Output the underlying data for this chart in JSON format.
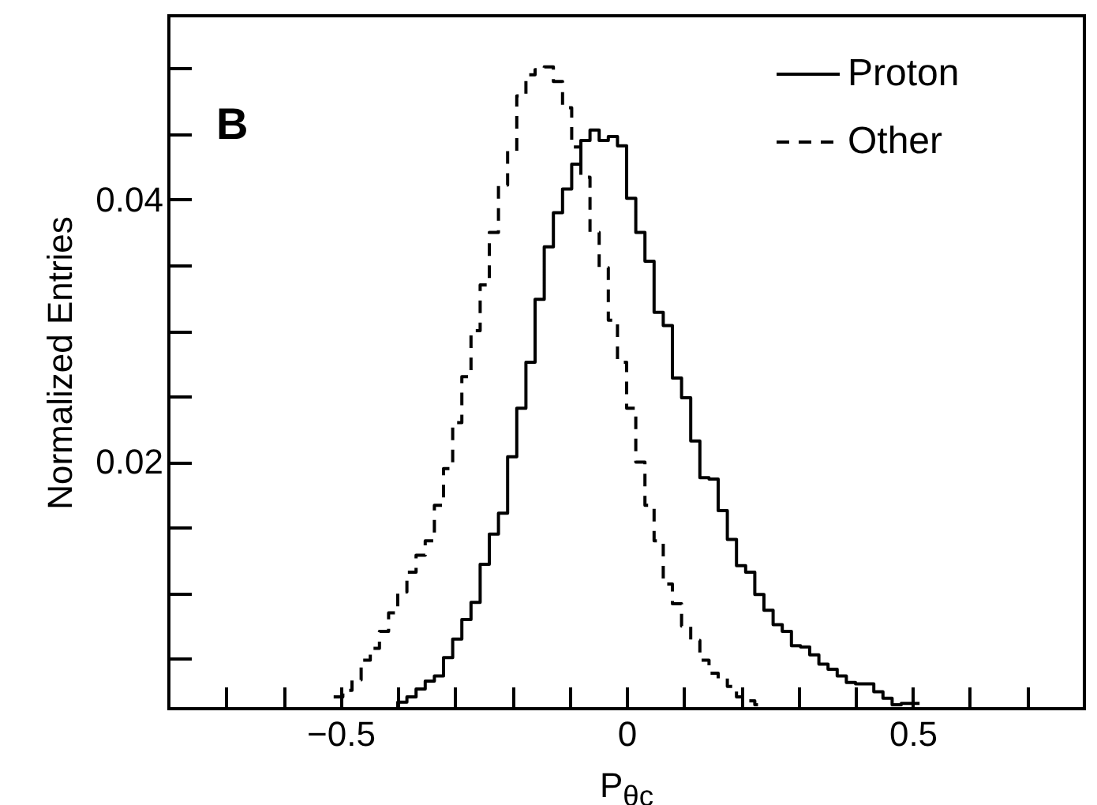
{
  "chart_data": {
    "type": "histogram",
    "xlabel": "P$_{θc}$",
    "ylabel": "Normalized Entries",
    "annotations": [
      "B"
    ],
    "legend": "top right",
    "bins": [
      -0.512,
      -0.496,
      -0.48,
      -0.464,
      -0.448,
      -0.432,
      -0.416,
      -0.4,
      -0.384,
      -0.368,
      -0.352,
      -0.336,
      -0.32,
      -0.304,
      -0.288,
      -0.272,
      -0.256,
      -0.24,
      -0.224,
      -0.208,
      -0.192,
      -0.176,
      -0.16,
      -0.144,
      -0.128,
      -0.112,
      -0.096,
      -0.08,
      -0.064,
      -0.048,
      -0.032,
      -0.016,
      0,
      0.016,
      0.032,
      0.048,
      0.064,
      0.08,
      0.096,
      0.112,
      0.128,
      0.144,
      0.16,
      0.176,
      0.192,
      0.208,
      0.224,
      0.24,
      0.256,
      0.272,
      0.288,
      0.304,
      0.32,
      0.336,
      0.352,
      0.368,
      0.384,
      0.4,
      0.416,
      0.432,
      0.448,
      0.464,
      0.48,
      0.496,
      0.512
    ],
    "series": [
      {
        "name": "Proton",
        "color": "#000000",
        "line_style": "solid",
        "values": [
          null,
          null,
          null,
          null,
          null,
          null,
          null,
          0.0017,
          0.0021,
          0.0027,
          0.0033,
          0.0037,
          0.0051,
          0.0065,
          0.008,
          0.0093,
          0.0122,
          0.0145,
          0.0161,
          0.0204,
          0.0241,
          0.0276,
          0.0324,
          0.0364,
          0.039,
          0.0408,
          0.0427,
          0.0445,
          0.0453,
          0.0445,
          0.0448,
          0.0441,
          0.0401,
          0.0375,
          0.0353,
          0.0314,
          0.0304,
          0.0264,
          0.0249,
          0.0216,
          0.0188,
          0.0187,
          0.0163,
          0.0141,
          0.0121,
          0.0116,
          0.0099,
          0.0087,
          0.0076,
          0.0071,
          0.006,
          0.0059,
          0.0053,
          0.0046,
          0.0042,
          0.0037,
          0.0032,
          0.0031,
          0.0031,
          0.0025,
          0.002,
          0.0015,
          0.0016,
          0.0016
        ]
      },
      {
        "name": "Other",
        "color": "#000000",
        "line_style": "dashed",
        "values": [
          0.0021,
          0.0026,
          0.0034,
          0.0049,
          0.0058,
          0.0071,
          0.0085,
          0.0101,
          0.0116,
          0.0129,
          0.014,
          0.0167,
          0.0195,
          0.023,
          0.0265,
          0.03,
          0.0335,
          0.0375,
          0.0411,
          0.0437,
          0.0479,
          0.0495,
          0.0499,
          0.0501,
          0.049,
          0.047,
          0.044,
          0.0417,
          0.0375,
          0.0348,
          0.0308,
          0.0276,
          0.0241,
          0.02,
          0.0167,
          0.014,
          0.0107,
          0.0092,
          0.0075,
          0.0064,
          0.0049,
          0.0039,
          0.0035,
          0.0029,
          0.0021,
          0.0018,
          0.0015,
          null,
          null,
          null,
          null,
          null,
          null,
          null,
          null,
          null,
          null,
          null,
          null,
          null,
          null,
          null,
          null,
          null
        ]
      }
    ],
    "xlim": [
      -0.8,
      0.8
    ],
    "xticks": [
      {
        "value": -0.7,
        "label": null
      },
      {
        "value": -0.6,
        "label": null
      },
      {
        "value": -0.5,
        "label": "−0.5"
      },
      {
        "value": -0.4,
        "label": null
      },
      {
        "value": -0.3,
        "label": null
      },
      {
        "value": -0.2,
        "label": null
      },
      {
        "value": -0.1,
        "label": null
      },
      0,
      {
        "value": 0.1,
        "label": null
      },
      {
        "value": 0.2,
        "label": null
      },
      {
        "value": 0.3,
        "label": null
      },
      {
        "value": 0.4,
        "label": null
      },
      0.5,
      {
        "value": 0.6,
        "label": null
      },
      {
        "value": 0.7,
        "label": null
      }
    ],
    "ylim": [
      0.0012,
      0.054
    ],
    "yticks": [
      {
        "value": 0.005,
        "label": null
      },
      {
        "value": 0.01,
        "label": null
      },
      {
        "value": 0.015,
        "label": null
      },
      0.02,
      {
        "value": 0.025,
        "label": null
      },
      {
        "value": 0.03,
        "label": null
      },
      {
        "value": 0.035,
        "label": null
      },
      0.04,
      {
        "value": 0.045,
        "label": null
      },
      {
        "value": 0.05,
        "label": null
      }
    ]
  }
}
